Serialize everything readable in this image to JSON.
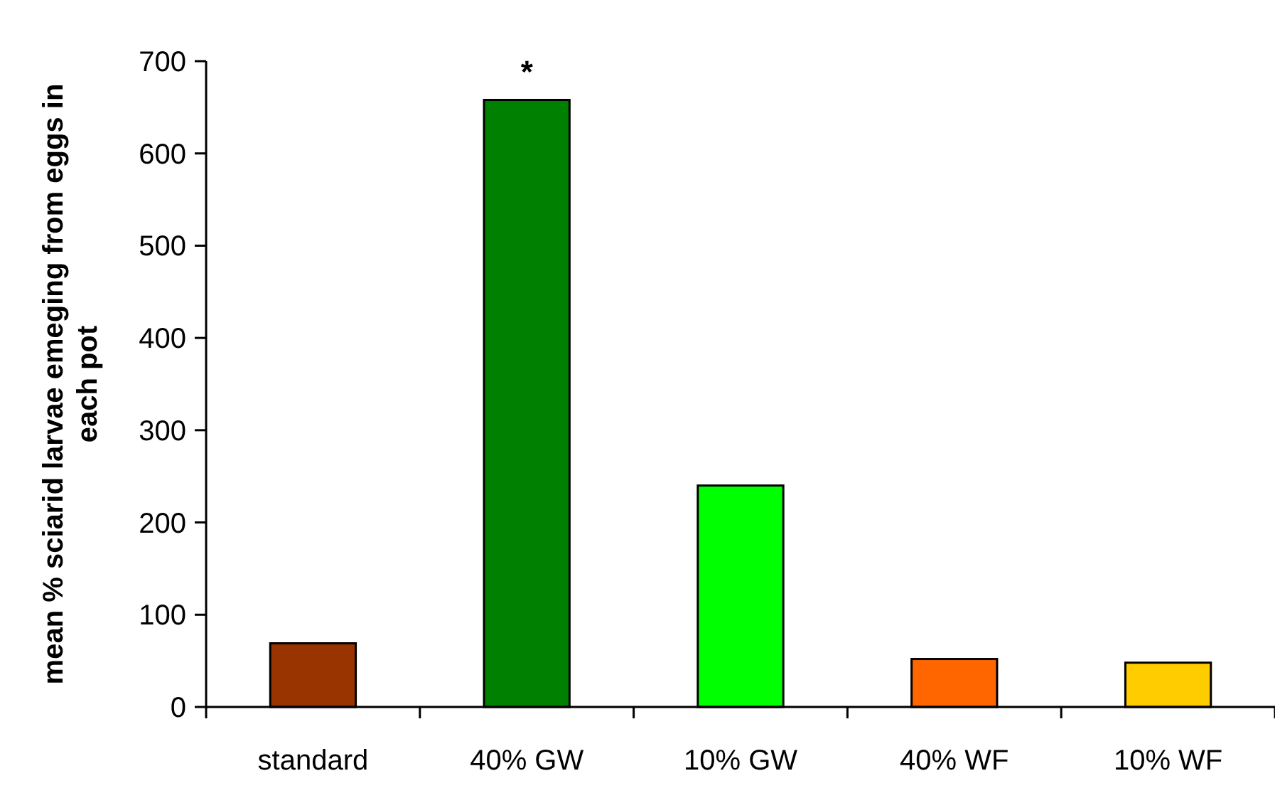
{
  "chart_data": {
    "type": "bar",
    "ylabel": "mean % sciarid larvae emeging from eggs in each pot",
    "categories": [
      "standard",
      "40% GW",
      "10% GW",
      "40% WF",
      "10% WF"
    ],
    "values": [
      69,
      658,
      240,
      52,
      48
    ],
    "colors": [
      "#993300",
      "#008000",
      "#00ff00",
      "#ff6600",
      "#ffcc00"
    ],
    "ylim": [
      0,
      700
    ],
    "yticks": [
      0,
      100,
      200,
      300,
      400,
      500,
      600,
      700
    ],
    "annotations": [
      {
        "text": "*",
        "x": "40% GW",
        "y": 658
      }
    ]
  }
}
